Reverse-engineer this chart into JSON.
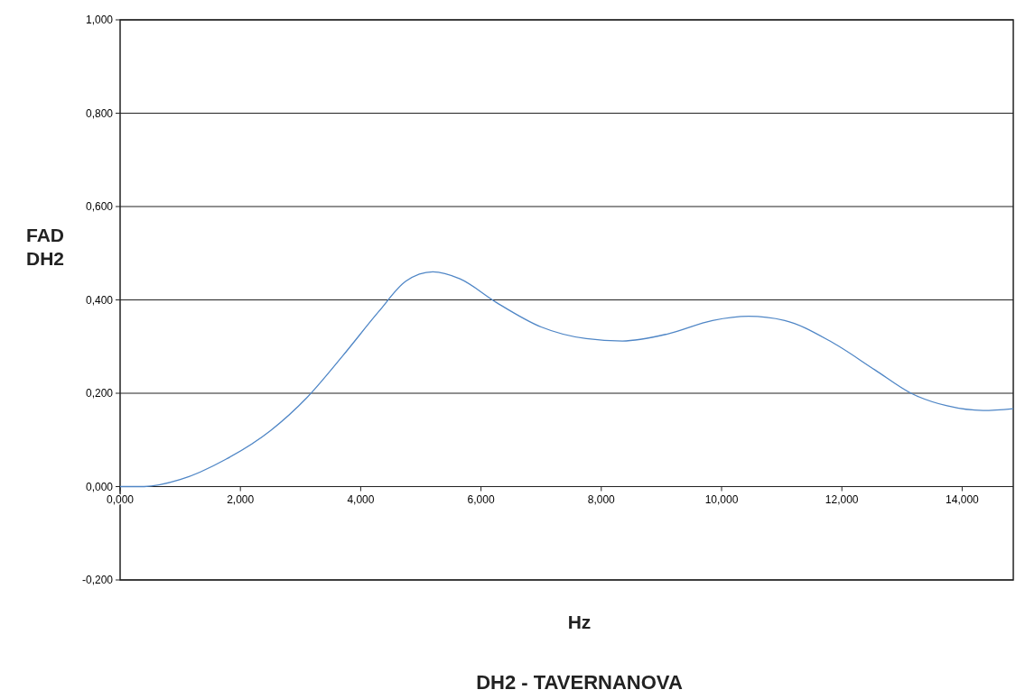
{
  "chart_data": {
    "type": "line",
    "title": "DH2 - TAVERNANOVA",
    "xlabel": "Hz",
    "ylabel": "FAD DH2",
    "x": [
      0,
      0.4,
      1.0,
      1.75,
      2.5,
      3.1,
      3.7,
      4.3,
      4.75,
      5.2,
      5.65,
      6.25,
      7.0,
      7.75,
      8.35,
      9.1,
      9.85,
      10.45,
      11.05,
      11.8,
      12.55,
      13.15,
      13.75,
      14.35,
      14.85
    ],
    "series": [
      {
        "color": "#4f86c6",
        "values": [
          0,
          0,
          0.015,
          0.058,
          0.12,
          0.19,
          0.28,
          0.375,
          0.44,
          0.46,
          0.445,
          0.395,
          0.342,
          0.317,
          0.312,
          0.327,
          0.356,
          0.365,
          0.356,
          0.312,
          0.25,
          0.2,
          0.173,
          0.163,
          0.167
        ]
      }
    ],
    "xlim": [
      0,
      14.85
    ],
    "ylim": [
      -0.2,
      1.0
    ],
    "xticks": [
      {
        "value": 0,
        "label": "0,000"
      },
      {
        "value": 2,
        "label": "2,000"
      },
      {
        "value": 4,
        "label": "4,000"
      },
      {
        "value": 6,
        "label": "6,000"
      },
      {
        "value": 8,
        "label": "8,000"
      },
      {
        "value": 10,
        "label": "10,000"
      },
      {
        "value": 12,
        "label": "12,000"
      },
      {
        "value": 14,
        "label": "14,000"
      }
    ],
    "yticks": [
      {
        "value": -0.2,
        "label": "-0,200"
      },
      {
        "value": 0,
        "label": "0,000"
      },
      {
        "value": 0.2,
        "label": "0,200"
      },
      {
        "value": 0.4,
        "label": "0,400"
      },
      {
        "value": 0.6,
        "label": "0,600"
      },
      {
        "value": 0.8,
        "label": "0,800"
      },
      {
        "value": 1.0,
        "label": "1,000"
      }
    ],
    "grid": "y",
    "marker": "none",
    "line_style": "solid"
  }
}
